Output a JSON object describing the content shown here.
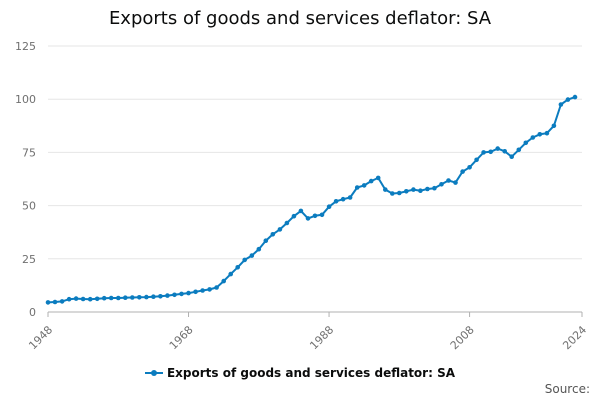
{
  "colors": {
    "series": "#0b7cbf",
    "grid": "#e6e6e6",
    "axis": "#b0b0b0"
  },
  "chart_data": {
    "type": "line",
    "title": "Exports of goods and services deflator: SA",
    "xlabel": "",
    "ylabel": "",
    "xlim": [
      1948,
      2024
    ],
    "ylim": [
      0,
      125
    ],
    "y_ticks": [
      0,
      25,
      50,
      75,
      100,
      125
    ],
    "x_ticks": [
      "1948",
      "1968",
      "1988",
      "2008",
      "2024"
    ],
    "grid": true,
    "legend_position": "bottom",
    "series": [
      {
        "name": "Exports of goods and services deflator: SA",
        "x": [
          1948,
          1949,
          1950,
          1951,
          1952,
          1953,
          1954,
          1955,
          1956,
          1957,
          1958,
          1959,
          1960,
          1961,
          1962,
          1963,
          1964,
          1965,
          1966,
          1967,
          1968,
          1969,
          1970,
          1971,
          1972,
          1973,
          1974,
          1975,
          1976,
          1977,
          1978,
          1979,
          1980,
          1981,
          1982,
          1983,
          1984,
          1985,
          1986,
          1987,
          1988,
          1989,
          1990,
          1991,
          1992,
          1993,
          1994,
          1995,
          1996,
          1997,
          1998,
          1999,
          2000,
          2001,
          2002,
          2003,
          2004,
          2005,
          2006,
          2007,
          2008,
          2009,
          2010,
          2011,
          2012,
          2013,
          2014,
          2015,
          2016,
          2017,
          2018,
          2019,
          2020,
          2021,
          2022,
          2023,
          2024
        ],
        "values": [
          4.5,
          4.7,
          5.0,
          6.0,
          6.3,
          6.1,
          6.0,
          6.2,
          6.5,
          6.6,
          6.6,
          6.7,
          6.8,
          6.9,
          7.0,
          7.2,
          7.4,
          7.7,
          8.1,
          8.5,
          8.9,
          9.5,
          10.1,
          10.6,
          11.5,
          14.5,
          17.8,
          21.0,
          24.5,
          26.5,
          29.5,
          33.5,
          36.5,
          38.8,
          41.8,
          45.0,
          47.5,
          44.0,
          45.2,
          45.7,
          49.5,
          52.0,
          53.0,
          53.8,
          58.5,
          59.5,
          61.5,
          63.0,
          57.5,
          55.7,
          55.9,
          56.7,
          57.5,
          57.0,
          57.8,
          58.2,
          60.0,
          61.8,
          60.8,
          66.0,
          68.0,
          71.5,
          75.0,
          75.3,
          76.8,
          75.5,
          73.0,
          76.2,
          79.5,
          82.0,
          83.5,
          84.0,
          87.5,
          97.5,
          99.8,
          101.0,
          null
        ]
      }
    ]
  },
  "legend": {
    "label": "Exports of goods and services deflator: SA"
  },
  "source": {
    "label": "Source:"
  }
}
